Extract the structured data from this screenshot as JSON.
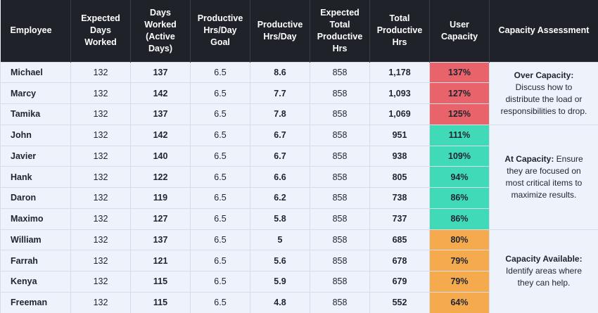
{
  "table": {
    "header": [
      "Employee",
      "Expected\nDays\nWorked",
      "Days\nWorked\n(Active Days)",
      "Productive\nHrs/Day\nGoal",
      "Productive\nHrs/Day",
      "Expected\nTotal\nProductive\nHrs",
      "Total\nProductive\nHrs",
      "User\nCapacity",
      "Capacity Assessment"
    ],
    "groups": [
      {
        "color": "#e8636a",
        "label": "Over Capacity:",
        "text": " Discuss how to distribute the load or responsibilities to drop.",
        "rows": [
          [
            "Michael",
            "132",
            "137",
            "6.5",
            "8.6",
            "858",
            "1,178",
            "137%"
          ],
          [
            "Marcy",
            "132",
            "142",
            "6.5",
            "7.7",
            "858",
            "1,093",
            "127%"
          ],
          [
            "Tamika",
            "132",
            "137",
            "6.5",
            "7.8",
            "858",
            "1,069",
            "125%"
          ]
        ]
      },
      {
        "color": "#40dab8",
        "label": "At Capacity:",
        "text": " Ensure they are focused on most critical items to maximize results.",
        "rows": [
          [
            "John",
            "132",
            "142",
            "6.5",
            "6.7",
            "858",
            "951",
            "111%"
          ],
          [
            "Javier",
            "132",
            "140",
            "6.5",
            "6.7",
            "858",
            "938",
            "109%"
          ],
          [
            "Hank",
            "132",
            "122",
            "6.5",
            "6.6",
            "858",
            "805",
            "94%"
          ],
          [
            "Daron",
            "132",
            "119",
            "6.5",
            "6.2",
            "858",
            "738",
            "86%"
          ],
          [
            "Maximo",
            "132",
            "127",
            "6.5",
            "5.8",
            "858",
            "737",
            "86%"
          ]
        ]
      },
      {
        "color": "#f5aa4e",
        "label": "Capacity Available:",
        "text": " Identify areas where they can help.",
        "rows": [
          [
            "William",
            "132",
            "137",
            "6.5",
            "5",
            "858",
            "685",
            "80%"
          ],
          [
            "Farrah",
            "132",
            "121",
            "6.5",
            "5.6",
            "858",
            "678",
            "79%"
          ],
          [
            "Kenya",
            "132",
            "115",
            "6.5",
            "5.9",
            "858",
            "679",
            "79%"
          ],
          [
            "Freeman",
            "132",
            "115",
            "6.5",
            "4.8",
            "858",
            "552",
            "64%"
          ]
        ]
      }
    ]
  }
}
